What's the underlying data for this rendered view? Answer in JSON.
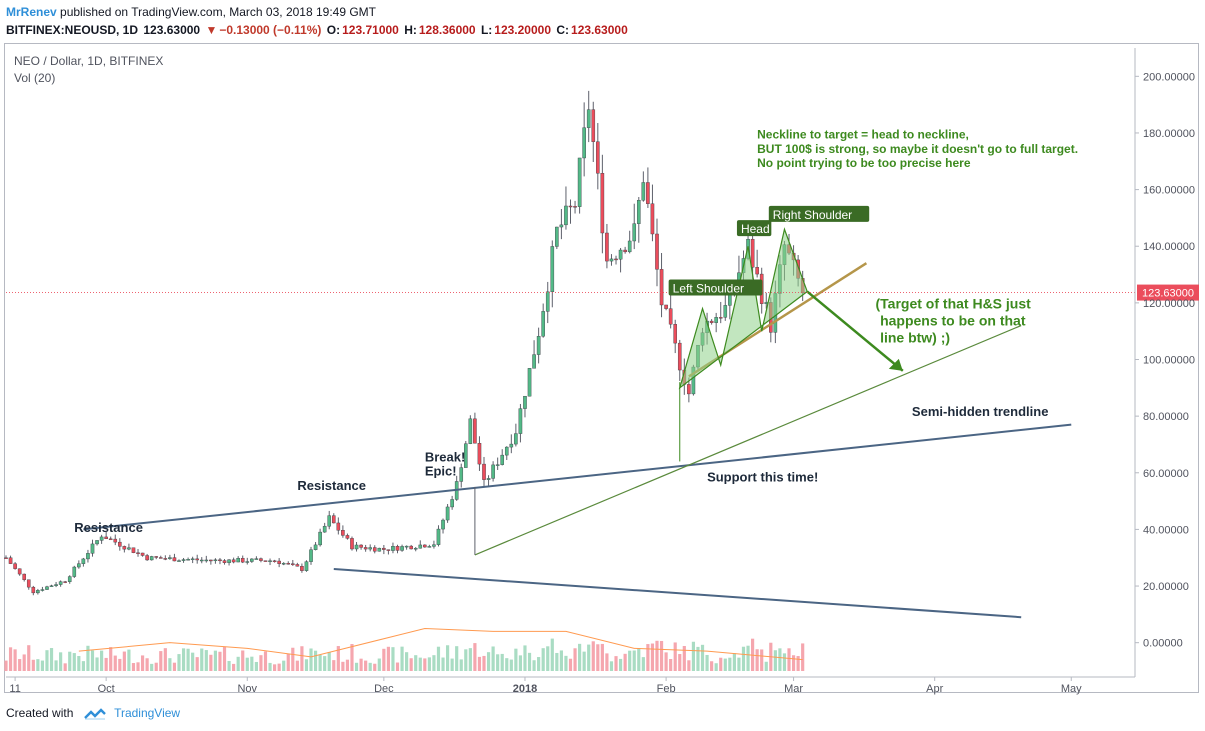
{
  "header": {
    "author": "MrRenev",
    "published": "published on TradingView.com, March 03, 2018 19:49 GMT",
    "symbol": "BITFINEX:NEOUSD, 1D",
    "price": "123.63000",
    "change": "−0.13000 (−0.11%)",
    "open_label": "O:",
    "open": "123.71000",
    "high_label": "H:",
    "high": "128.36000",
    "low_label": "L:",
    "low": "123.20000",
    "close_label": "C:",
    "close": "123.63000"
  },
  "footer": {
    "created_with": "Created with",
    "brand": "TradingView"
  },
  "chart_data": {
    "type": "candlestick",
    "title": "NEO / Dollar, 1D, BITFINEX",
    "indicator": "Vol (20)",
    "ylim": [
      -10,
      210
    ],
    "yticks": [
      "200.00000",
      "180.00000",
      "160.00000",
      "140.00000",
      "120.00000",
      "100.00000",
      "80.00000",
      "60.00000",
      "40.00000",
      "20.00000",
      "0.00000"
    ],
    "ytick_values": [
      200,
      180,
      160,
      140,
      120,
      100,
      80,
      60,
      40,
      20,
      0
    ],
    "xlim": [
      "2017-09-09",
      "2018-05-15"
    ],
    "xticks": [
      {
        "label": "11",
        "date": "2017-09-11"
      },
      {
        "label": "Oct",
        "date": "2017-10-01"
      },
      {
        "label": "Nov",
        "date": "2017-11-01"
      },
      {
        "label": "Dec",
        "date": "2017-12-01"
      },
      {
        "label": "2018",
        "date": "2018-01-01"
      },
      {
        "label": "Feb",
        "date": "2018-02-01"
      },
      {
        "label": "Mar",
        "date": "2018-03-01"
      },
      {
        "label": "Apr",
        "date": "2018-04-01"
      },
      {
        "label": "May",
        "date": "2018-05-01"
      }
    ],
    "current_price": 123.63,
    "current_price_label": "123.63000",
    "colors": {
      "up": "#53b987",
      "down": "#eb4d5c",
      "up_vol": "#a9dcc3",
      "down_vol": "#f5a6ae",
      "vol_ma": "#ff9a50",
      "trend_blue": "#4b6584",
      "trend_green": "#5a8a3c",
      "neckline": "#b5964a",
      "pattern_fill": "#8fd18a",
      "annotation_green": "#3d8a1f"
    },
    "price_path": [
      {
        "date": "2017-09-09",
        "price": 30
      },
      {
        "date": "2017-09-15",
        "price": 18
      },
      {
        "date": "2017-09-22",
        "price": 22
      },
      {
        "date": "2017-09-30",
        "price": 38
      },
      {
        "date": "2017-10-10",
        "price": 30
      },
      {
        "date": "2017-10-25",
        "price": 29
      },
      {
        "date": "2017-11-07",
        "price": 29
      },
      {
        "date": "2017-11-13",
        "price": 26
      },
      {
        "date": "2017-11-19",
        "price": 44
      },
      {
        "date": "2017-11-24",
        "price": 34
      },
      {
        "date": "2017-12-01",
        "price": 33
      },
      {
        "date": "2017-12-12",
        "price": 35
      },
      {
        "date": "2017-12-17",
        "price": 56
      },
      {
        "date": "2017-12-20",
        "price": 78
      },
      {
        "date": "2017-12-23",
        "price": 56
      },
      {
        "date": "2017-12-30",
        "price": 75
      },
      {
        "date": "2018-01-04",
        "price": 110
      },
      {
        "date": "2018-01-08",
        "price": 145
      },
      {
        "date": "2018-01-12",
        "price": 155
      },
      {
        "date": "2018-01-15",
        "price": 190
      },
      {
        "date": "2018-01-19",
        "price": 135
      },
      {
        "date": "2018-01-25",
        "price": 145
      },
      {
        "date": "2018-01-27",
        "price": 165
      },
      {
        "date": "2018-01-31",
        "price": 120
      },
      {
        "date": "2018-02-06",
        "price": 88
      },
      {
        "date": "2018-02-09",
        "price": 112
      },
      {
        "date": "2018-02-14",
        "price": 118
      },
      {
        "date": "2018-02-19",
        "price": 140
      },
      {
        "date": "2018-02-24",
        "price": 112
      },
      {
        "date": "2018-02-27",
        "price": 140
      },
      {
        "date": "2018-03-03",
        "price": 123.63
      }
    ],
    "volume_ma_path": [
      {
        "date": "2017-09-25",
        "vol": -3
      },
      {
        "date": "2017-10-15",
        "vol": 0
      },
      {
        "date": "2017-11-01",
        "vol": -2
      },
      {
        "date": "2017-11-15",
        "vol": -5
      },
      {
        "date": "2017-12-10",
        "vol": 5
      },
      {
        "date": "2017-12-25",
        "vol": 4
      },
      {
        "date": "2018-01-10",
        "vol": 4
      },
      {
        "date": "2018-01-25",
        "vol": -2
      },
      {
        "date": "2018-02-10",
        "vol": -3
      },
      {
        "date": "2018-03-03",
        "vol": -6
      }
    ],
    "annotations": [
      {
        "text": "Resistance",
        "date": "2017-09-24",
        "price": 39
      },
      {
        "text": "Resistance",
        "date": "2017-11-12",
        "price": 54
      },
      {
        "text": "Break!",
        "date": "2017-12-10",
        "price": 64
      },
      {
        "text": "Epic!",
        "date": "2017-12-10",
        "price": 59
      },
      {
        "text": "Support this time!",
        "date": "2018-02-10",
        "price": 57
      },
      {
        "text": "Semi-hidden trendline",
        "date": "2018-03-27",
        "price": 80
      },
      {
        "text": "(Target of that H&S just",
        "date": "2018-03-19",
        "price": 118
      },
      {
        "text": "happens to be on that",
        "date": "2018-03-20",
        "price": 112
      },
      {
        "text": "line btw)  ;)",
        "date": "2018-03-20",
        "price": 106
      },
      {
        "text": "Neckline to target = head to neckline,",
        "date": "2018-02-21",
        "price": 178
      },
      {
        "text": "BUT 100$ is strong, so maybe it doesn't go to full target.",
        "date": "2018-02-21",
        "price": 173
      },
      {
        "text": "No point trying to be too precise here",
        "date": "2018-02-21",
        "price": 168
      }
    ],
    "pattern_labels": [
      {
        "text": "Left Shoulder",
        "date": "2018-02-02",
        "price": 124
      },
      {
        "text": "Head",
        "date": "2018-02-17",
        "price": 145
      },
      {
        "text": "Right Shoulder",
        "date": "2018-02-24",
        "price": 150
      }
    ]
  }
}
